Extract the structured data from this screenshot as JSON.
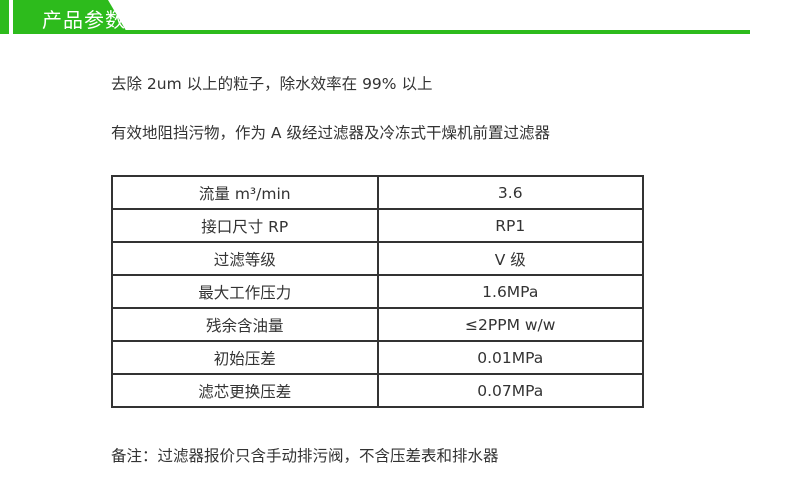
{
  "header": {
    "title": "产品参数",
    "accent": "#2dbb1c"
  },
  "intro": [
    "去除 2um 以上的粒子，除水效率在 99% 以上",
    "有效地阻挡污物，作为 A 级经过滤器及冷冻式干燥机前置过滤器"
  ],
  "specs": [
    {
      "label": "流量 m³/min",
      "value": "3.6"
    },
    {
      "label": "接口尺寸 RP",
      "value": "RP1"
    },
    {
      "label": "过滤等级",
      "value": "V 级"
    },
    {
      "label": "最大工作压力",
      "value": "1.6MPa"
    },
    {
      "label": "残余含油量",
      "value": "≤2PPM w/w"
    },
    {
      "label": "初始压差",
      "value": "0.01MPa"
    },
    {
      "label": "滤芯更换压差",
      "value": "0.07MPa"
    }
  ],
  "note": "备注：过滤器报价只含手动排污阀，不含压差表和排水器"
}
